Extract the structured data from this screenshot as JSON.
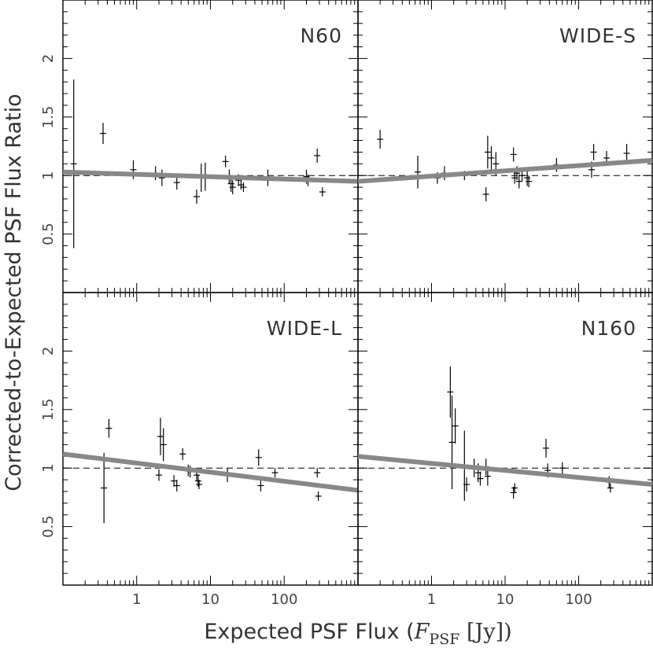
{
  "chart_data": {
    "type": "scatter",
    "title": "",
    "xlabel_parts": {
      "prefix": "Expected PSF Flux (",
      "var": "F",
      "sub": "PSF",
      "unit": " [Jy])"
    },
    "ylabel": "Corrected-to-Expected PSF Flux Ratio",
    "xscale": "log",
    "xlim": [
      0.1,
      1000
    ],
    "ylim": [
      0,
      2.5
    ],
    "xtick_labels": [
      {
        "value": 1,
        "label": "1"
      },
      {
        "value": 10,
        "label": "10"
      },
      {
        "value": 100,
        "label": "100"
      }
    ],
    "ytick_labels": [
      {
        "value": 0.5,
        "label": "0.5"
      },
      {
        "value": 1,
        "label": "1"
      },
      {
        "value": 1.5,
        "label": "1.5"
      },
      {
        "value": 2,
        "label": "2"
      }
    ],
    "reference_line": 1.0,
    "panels": [
      {
        "name": "N60",
        "fit": [
          [
            0.1,
            1.03
          ],
          [
            1000,
            0.95
          ]
        ],
        "points": [
          {
            "x": 0.14,
            "y": 1.1,
            "err": 0.72
          },
          {
            "x": 0.35,
            "y": 1.36,
            "err": 0.09
          },
          {
            "x": 0.9,
            "y": 1.05,
            "err": 0.08
          },
          {
            "x": 1.8,
            "y": 1.02,
            "err": 0.06
          },
          {
            "x": 2.2,
            "y": 0.98,
            "err": 0.07
          },
          {
            "x": 3.5,
            "y": 0.94,
            "err": 0.06
          },
          {
            "x": 6.5,
            "y": 0.82,
            "err": 0.06
          },
          {
            "x": 7.5,
            "y": 0.98,
            "err": 0.12
          },
          {
            "x": 8.5,
            "y": 0.99,
            "err": 0.12
          },
          {
            "x": 16,
            "y": 1.12,
            "err": 0.05
          },
          {
            "x": 18,
            "y": 0.99,
            "err": 0.06
          },
          {
            "x": 19,
            "y": 0.93,
            "err": 0.07
          },
          {
            "x": 20,
            "y": 0.9,
            "err": 0.06
          },
          {
            "x": 24,
            "y": 0.96,
            "err": 0.05
          },
          {
            "x": 26,
            "y": 0.92,
            "err": 0.04
          },
          {
            "x": 28,
            "y": 0.9,
            "err": 0.04
          },
          {
            "x": 60,
            "y": 0.98,
            "err": 0.07
          },
          {
            "x": 200,
            "y": 0.99,
            "err": 0.06
          },
          {
            "x": 210,
            "y": 0.96,
            "err": 0.05
          },
          {
            "x": 280,
            "y": 1.17,
            "err": 0.06
          },
          {
            "x": 330,
            "y": 0.86,
            "err": 0.04
          }
        ]
      },
      {
        "name": "WIDE-S",
        "fit": [
          [
            0.1,
            0.95
          ],
          [
            1000,
            1.13
          ]
        ],
        "points": [
          {
            "x": 0.2,
            "y": 1.31,
            "err": 0.08
          },
          {
            "x": 0.65,
            "y": 1.03,
            "err": 0.14
          },
          {
            "x": 1.2,
            "y": 0.98,
            "err": 0.05
          },
          {
            "x": 1.5,
            "y": 1.02,
            "err": 0.06
          },
          {
            "x": 2.8,
            "y": 1.0,
            "err": 0.04
          },
          {
            "x": 5.5,
            "y": 0.84,
            "err": 0.06
          },
          {
            "x": 5.8,
            "y": 1.2,
            "err": 0.14
          },
          {
            "x": 6.5,
            "y": 1.15,
            "err": 0.1
          },
          {
            "x": 7.5,
            "y": 1.1,
            "err": 0.1
          },
          {
            "x": 13,
            "y": 1.18,
            "err": 0.06
          },
          {
            "x": 13.5,
            "y": 0.98,
            "err": 0.05
          },
          {
            "x": 14.5,
            "y": 1.02,
            "err": 0.06
          },
          {
            "x": 15.5,
            "y": 0.95,
            "err": 0.06
          },
          {
            "x": 17,
            "y": 1.0,
            "err": 0.05
          },
          {
            "x": 20,
            "y": 0.98,
            "err": 0.07
          },
          {
            "x": 21,
            "y": 0.95,
            "err": 0.05
          },
          {
            "x": 50,
            "y": 1.09,
            "err": 0.06
          },
          {
            "x": 150,
            "y": 1.05,
            "err": 0.07
          },
          {
            "x": 160,
            "y": 1.2,
            "err": 0.07
          },
          {
            "x": 240,
            "y": 1.15,
            "err": 0.06
          },
          {
            "x": 450,
            "y": 1.19,
            "err": 0.08
          }
        ]
      },
      {
        "name": "WIDE-L",
        "fit": [
          [
            0.1,
            1.12
          ],
          [
            1000,
            0.81
          ]
        ],
        "points": [
          {
            "x": 0.36,
            "y": 0.83,
            "err": 0.3
          },
          {
            "x": 0.42,
            "y": 1.34,
            "err": 0.08
          },
          {
            "x": 2.0,
            "y": 0.94,
            "err": 0.05
          },
          {
            "x": 2.1,
            "y": 1.27,
            "err": 0.16
          },
          {
            "x": 2.3,
            "y": 1.2,
            "err": 0.14
          },
          {
            "x": 3.2,
            "y": 0.89,
            "err": 0.05
          },
          {
            "x": 3.5,
            "y": 0.85,
            "err": 0.05
          },
          {
            "x": 4.2,
            "y": 1.12,
            "err": 0.05
          },
          {
            "x": 5.0,
            "y": 0.98,
            "err": 0.05
          },
          {
            "x": 5.3,
            "y": 0.97,
            "err": 0.05
          },
          {
            "x": 6.5,
            "y": 0.94,
            "err": 0.05
          },
          {
            "x": 6.8,
            "y": 0.89,
            "err": 0.05
          },
          {
            "x": 7.0,
            "y": 0.86,
            "err": 0.04
          },
          {
            "x": 17,
            "y": 0.94,
            "err": 0.06
          },
          {
            "x": 45,
            "y": 1.09,
            "err": 0.07
          },
          {
            "x": 48,
            "y": 0.85,
            "err": 0.05
          },
          {
            "x": 75,
            "y": 0.96,
            "err": 0.04
          },
          {
            "x": 280,
            "y": 0.96,
            "err": 0.04
          },
          {
            "x": 290,
            "y": 0.76,
            "err": 0.04
          }
        ]
      },
      {
        "name": "N160",
        "fit": [
          [
            0.1,
            1.1
          ],
          [
            1000,
            0.86
          ]
        ],
        "points": [
          {
            "x": 1.8,
            "y": 1.65,
            "err": 0.22
          },
          {
            "x": 1.9,
            "y": 1.22,
            "err": 0.4
          },
          {
            "x": 2.1,
            "y": 1.36,
            "err": 0.15
          },
          {
            "x": 2.8,
            "y": 1.02,
            "err": 0.3
          },
          {
            "x": 3.0,
            "y": 0.86,
            "err": 0.06
          },
          {
            "x": 3.8,
            "y": 1.0,
            "err": 0.08
          },
          {
            "x": 4.3,
            "y": 0.96,
            "err": 0.08
          },
          {
            "x": 4.6,
            "y": 0.91,
            "err": 0.06
          },
          {
            "x": 5.5,
            "y": 1.01,
            "err": 0.07
          },
          {
            "x": 5.8,
            "y": 0.93,
            "err": 0.08
          },
          {
            "x": 13,
            "y": 0.79,
            "err": 0.05
          },
          {
            "x": 13.5,
            "y": 0.83,
            "err": 0.04
          },
          {
            "x": 36,
            "y": 1.17,
            "err": 0.08
          },
          {
            "x": 38,
            "y": 0.98,
            "err": 0.06
          },
          {
            "x": 60,
            "y": 1.0,
            "err": 0.05
          },
          {
            "x": 260,
            "y": 0.88,
            "err": 0.05
          },
          {
            "x": 270,
            "y": 0.83,
            "err": 0.04
          }
        ]
      }
    ]
  }
}
